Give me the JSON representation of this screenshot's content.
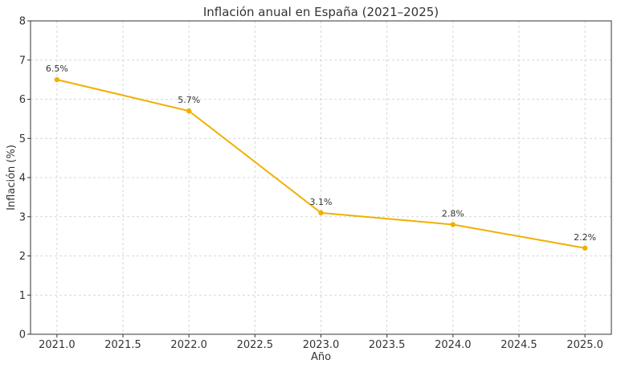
{
  "chart_data": {
    "type": "line",
    "title": "Inflación anual en España (2021–2025)",
    "xlabel": "Año",
    "ylabel": "Inflación (%)",
    "x": [
      2021,
      2022,
      2023,
      2024,
      2025
    ],
    "series": [
      {
        "values": [
          6.5,
          5.7,
          3.1,
          2.8,
          2.2
        ],
        "labels": [
          "6.5%",
          "5.7%",
          "3.1%",
          "2.8%",
          "2.2%"
        ],
        "color": "#f0b000"
      }
    ],
    "xlim": [
      2020.8,
      2025.2
    ],
    "ylim": [
      0,
      8
    ],
    "xticks": [
      2021.0,
      2021.5,
      2022.0,
      2022.5,
      2023.0,
      2023.5,
      2024.0,
      2024.5,
      2025.0
    ],
    "xtick_labels": [
      "2021.0",
      "2021.5",
      "2022.0",
      "2022.5",
      "2023.0",
      "2023.5",
      "2024.0",
      "2024.5",
      "2025.0"
    ],
    "yticks": [
      0,
      1,
      2,
      3,
      4,
      5,
      6,
      7,
      8
    ],
    "ytick_labels": [
      "0",
      "1",
      "2",
      "3",
      "4",
      "5",
      "6",
      "7",
      "8"
    ],
    "grid": true,
    "legend": "none"
  }
}
